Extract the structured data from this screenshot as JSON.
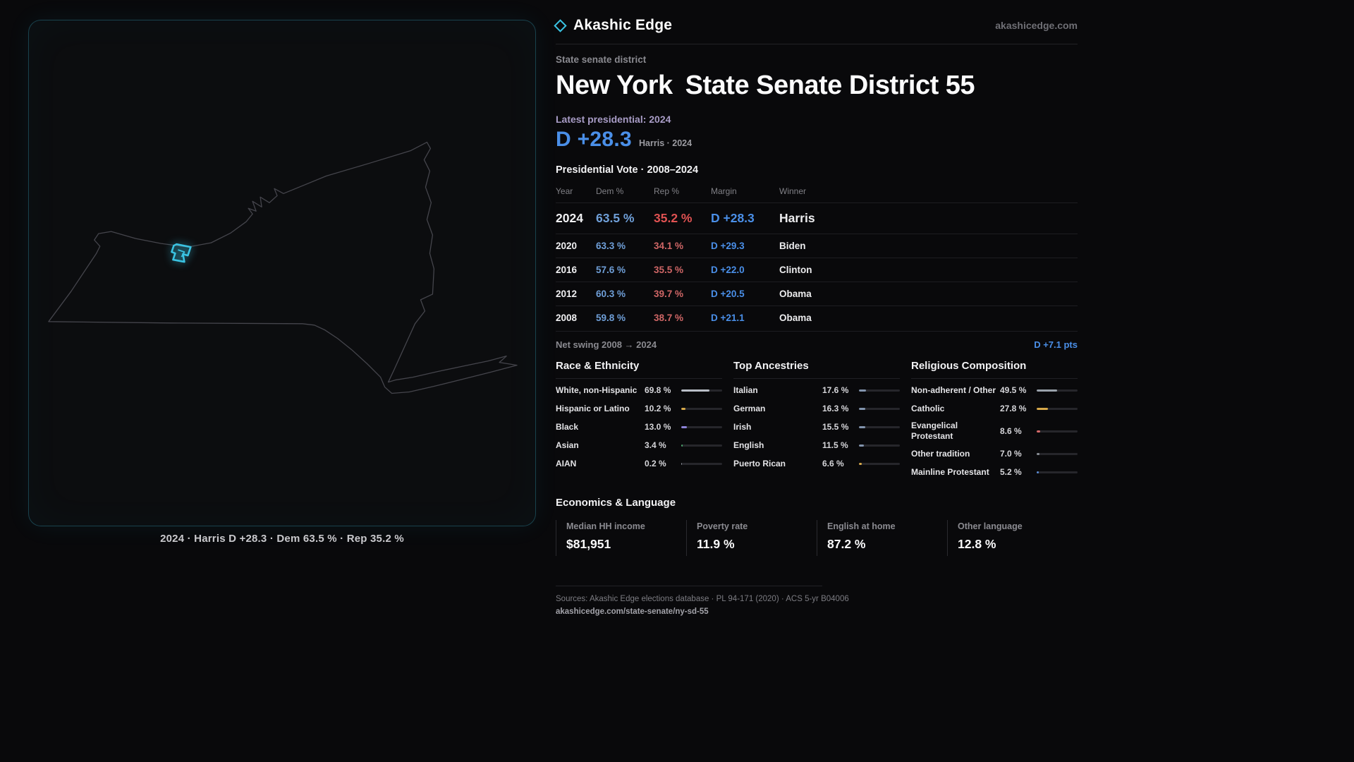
{
  "header": {
    "brand": "Akashic Edge",
    "site": "akashicedge.com",
    "kicker": "State senate district"
  },
  "title": {
    "region": "New York",
    "district": "State Senate District 55"
  },
  "latest": {
    "label": "Latest presidential: 2024",
    "margin": "D +28.3",
    "sub": "Harris · 2024"
  },
  "map": {
    "caption": "2024 · Harris D +28.3 · Dem 63.5 % · Rep 35.2 %"
  },
  "vote_table": {
    "title": "Presidential Vote · 2008–2024",
    "headers": [
      "Year",
      "Dem %",
      "Rep %",
      "Margin",
      "Winner"
    ],
    "rows": [
      {
        "year": "2024",
        "dem": "63.5 %",
        "rep": "35.2 %",
        "margin": "D +28.3",
        "winner": "Harris"
      },
      {
        "year": "2020",
        "dem": "63.3 %",
        "rep": "34.1 %",
        "margin": "D +29.3",
        "winner": "Biden"
      },
      {
        "year": "2016",
        "dem": "57.6 %",
        "rep": "35.5 %",
        "margin": "D +22.0",
        "winner": "Clinton"
      },
      {
        "year": "2012",
        "dem": "60.3 %",
        "rep": "39.7 %",
        "margin": "D +20.5",
        "winner": "Obama"
      },
      {
        "year": "2008",
        "dem": "59.8 %",
        "rep": "38.7 %",
        "margin": "D +21.1",
        "winner": "Obama"
      }
    ]
  },
  "swing": {
    "label": "Net swing 2008 → 2024",
    "value": "D +7.1 pts"
  },
  "demographics": {
    "race": {
      "title": "Race & Ethnicity",
      "items": [
        {
          "label": "White, non-Hispanic",
          "pct": "69.8 %",
          "value": 69.8,
          "color": "#b9bec7"
        },
        {
          "label": "Hispanic or Latino",
          "pct": "10.2 %",
          "value": 10.2,
          "color": "#d7a94a"
        },
        {
          "label": "Black",
          "pct": "13.0 %",
          "value": 13.0,
          "color": "#8d83d8"
        },
        {
          "label": "Asian",
          "pct": "3.4 %",
          "value": 3.4,
          "color": "#49a86d"
        },
        {
          "label": "AIAN",
          "pct": "0.2 %",
          "value": 0.2,
          "color": "#9aa0a8"
        }
      ]
    },
    "ancestries": {
      "title": "Top Ancestries",
      "items": [
        {
          "label": "Italian",
          "pct": "17.6 %",
          "value": 17.6,
          "color": "#8294ad"
        },
        {
          "label": "German",
          "pct": "16.3 %",
          "value": 16.3,
          "color": "#8294ad"
        },
        {
          "label": "Irish",
          "pct": "15.5 %",
          "value": 15.5,
          "color": "#8294ad"
        },
        {
          "label": "English",
          "pct": "11.5 %",
          "value": 11.5,
          "color": "#8294ad"
        },
        {
          "label": "Puerto Rican",
          "pct": "6.6 %",
          "value": 6.6,
          "color": "#d7a94a"
        }
      ]
    },
    "religion": {
      "title": "Religious Composition",
      "items": [
        {
          "label": "Non-adherent / Other",
          "pct": "49.5 %",
          "value": 49.5,
          "color": "#9aa2ab"
        },
        {
          "label": "Catholic",
          "pct": "27.8 %",
          "value": 27.8,
          "color": "#d7a94a"
        },
        {
          "label": "Evangelical Protestant",
          "pct": "8.6 %",
          "value": 8.6,
          "color": "#d76a6a"
        },
        {
          "label": "Other tradition",
          "pct": "7.0 %",
          "value": 7.0,
          "color": "#8a8f96"
        },
        {
          "label": "Mainline Protestant",
          "pct": "5.2 %",
          "value": 5.2,
          "color": "#5b8dd9"
        }
      ]
    }
  },
  "economics": {
    "title": "Economics & Language",
    "stats": [
      {
        "label": "Median HH income",
        "value": "$81,951"
      },
      {
        "label": "Poverty rate",
        "value": "11.9 %"
      },
      {
        "label": "English at home",
        "value": "87.2 %"
      },
      {
        "label": "Other language",
        "value": "12.8 %"
      }
    ]
  },
  "footer": {
    "sources": "Sources: Akashic Edge elections database · PL 94-171 (2020) · ACS 5-yr B04006",
    "permalink": "akashicedge.com/state-senate/ny-sd-55"
  },
  "colors": {
    "accent": "#3ac3e2",
    "dem": "#4a8fe8",
    "rep": "#d76a6a",
    "lavender": "#a89cc6"
  }
}
